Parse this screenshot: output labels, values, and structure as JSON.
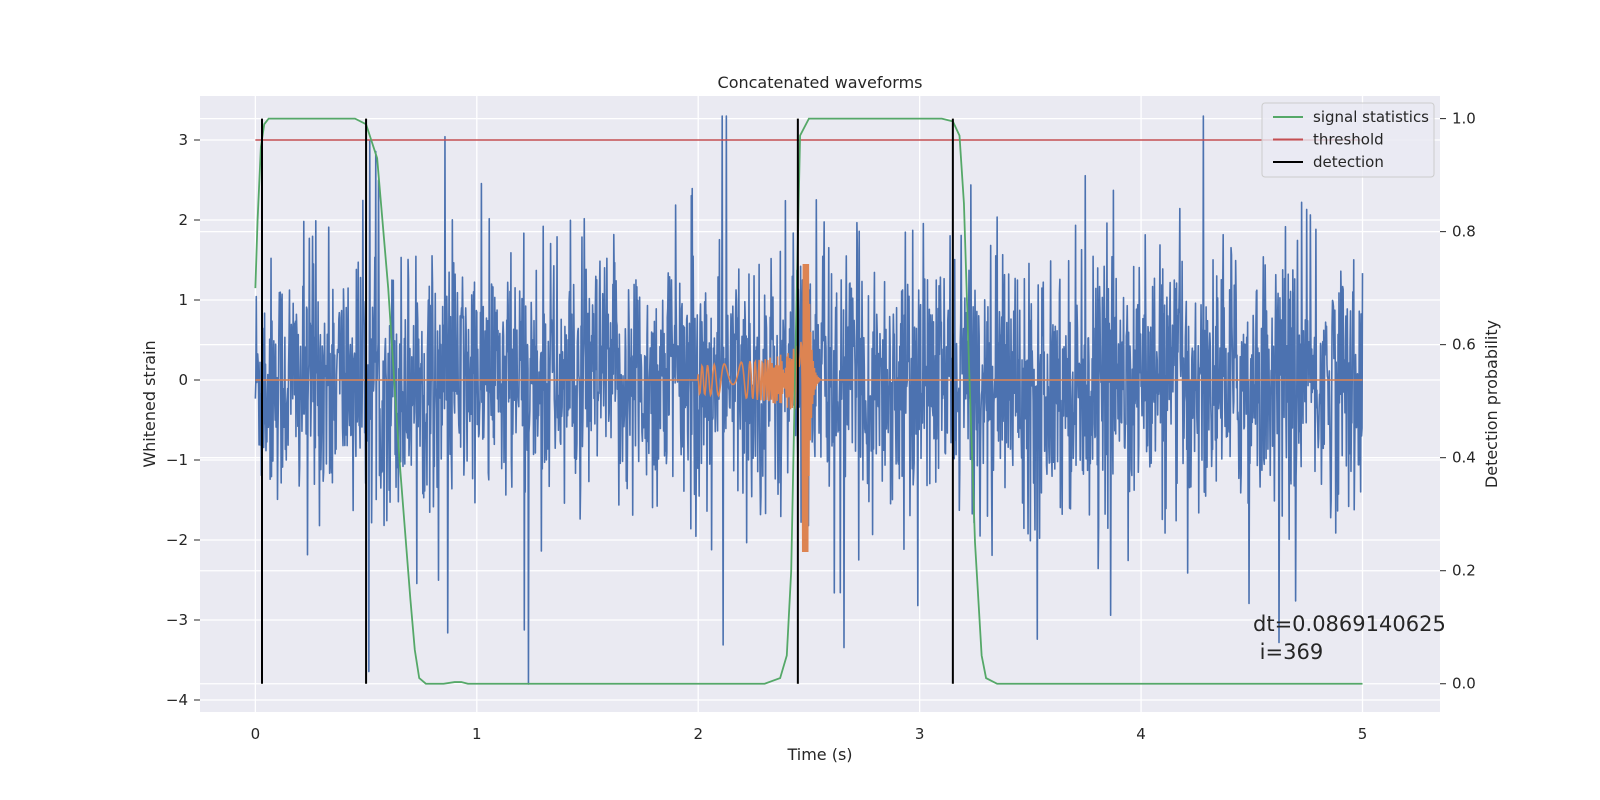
{
  "chart_data": {
    "type": "line",
    "title": "Concatenated waveforms",
    "xlabel": "Time (s)",
    "ylabel": "Whitened strain",
    "y2label": "Detection probability",
    "xlim": [
      -0.25,
      5.35
    ],
    "ylim": [
      -4.15,
      3.55
    ],
    "y2lim": [
      -0.05,
      1.04
    ],
    "x_ticks": [
      0,
      1,
      2,
      3,
      4,
      5
    ],
    "y_ticks": [
      -4,
      -3,
      -2,
      -1,
      0,
      1,
      2,
      3
    ],
    "y2_ticks": [
      0.0,
      0.2,
      0.4,
      0.6,
      0.8,
      1.0
    ],
    "x_tick_labels": [
      "0",
      "1",
      "2",
      "3",
      "4",
      "5"
    ],
    "y_tick_labels": [
      "−4",
      "−3",
      "−2",
      "−1",
      "0",
      "1",
      "2",
      "3"
    ],
    "y2_tick_labels": [
      "0.0",
      "0.2",
      "0.4",
      "0.6",
      "0.8",
      "1.0"
    ],
    "grid": true,
    "legend_position": "top-right",
    "legend": [
      {
        "label": "signal statistics",
        "color": "#55a868"
      },
      {
        "label": "threshold",
        "color": "#c44e52"
      },
      {
        "label": "detection",
        "color": "#000000"
      }
    ],
    "series": [
      {
        "name": "whitened noise",
        "color": "#4c72b0",
        "x_range": [
          0,
          5
        ],
        "approx_amplitude": 1.0,
        "peak_range": [
          -3.8,
          3.3
        ]
      },
      {
        "name": "injected signal",
        "color": "#dd8452",
        "x_range": [
          0,
          5
        ],
        "chirp_start": 2.0,
        "merger": 2.5,
        "peak": 1.45,
        "trough": -2.15
      },
      {
        "name": "signal statistics",
        "color": "#55a868",
        "axis": "right",
        "x": [
          0,
          0.01,
          0.025,
          0.04,
          0.06,
          0.1,
          0.4,
          0.45,
          0.5,
          0.55,
          0.6,
          0.65,
          0.7,
          0.72,
          0.74,
          0.77,
          0.8,
          0.85,
          0.9,
          0.93,
          0.96,
          1.0,
          1.5,
          2.0,
          2.3,
          2.37,
          2.4,
          2.42,
          2.44,
          2.46,
          2.5,
          2.6,
          3.1,
          3.15,
          3.18,
          3.2,
          3.22,
          3.25,
          3.28,
          3.3,
          3.35,
          4.0,
          5.0
        ],
        "y": [
          0.7,
          0.82,
          0.95,
          0.99,
          1.0,
          1.0,
          1.0,
          1.0,
          0.99,
          0.93,
          0.7,
          0.4,
          0.15,
          0.06,
          0.01,
          0.0,
          0.0,
          0.0,
          0.003,
          0.003,
          0.0,
          0.0,
          0.0,
          0.0,
          0.0,
          0.01,
          0.05,
          0.2,
          0.6,
          0.97,
          1.0,
          1.0,
          1.0,
          0.995,
          0.97,
          0.85,
          0.6,
          0.25,
          0.05,
          0.01,
          0.0,
          0.0,
          0.0
        ]
      },
      {
        "name": "threshold",
        "color": "#c44e52",
        "x": [
          0,
          5
        ],
        "y": [
          3.0,
          3.0
        ]
      }
    ],
    "detections": [
      0.03,
      0.5,
      2.45,
      3.15
    ],
    "annotation": [
      "dt=0.0869140625",
      " i=369"
    ]
  }
}
